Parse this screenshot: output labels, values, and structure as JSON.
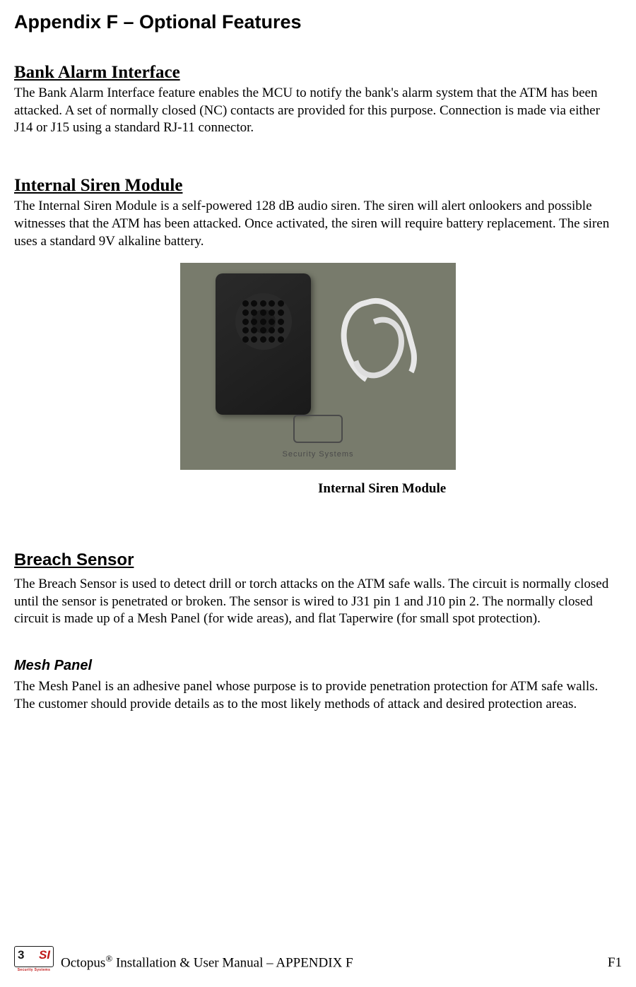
{
  "page": {
    "title": "Appendix F – Optional Features"
  },
  "sections": {
    "bank_alarm": {
      "heading": "Bank Alarm Interface",
      "body": "The Bank Alarm Interface feature enables the MCU to notify the bank's alarm system that the ATM has been attacked. A set of normally closed (NC) contacts are provided for this purpose. Connection is made via either J14 or J15 using a standard RJ-11 connector."
    },
    "siren": {
      "heading": "Internal Siren Module",
      "body": "The Internal Siren Module is a self-powered 128 dB audio siren. The siren will alert onlookers and possible witnesses that the ATM has been attacked. Once activated, the siren will require battery replacement. The siren uses a standard 9V alkaline battery.",
      "figure_caption": "Internal Siren Module",
      "figure_brand": "Security Systems"
    },
    "breach": {
      "heading": "Breach Sensor",
      "body": "The Breach Sensor is used to detect drill or torch attacks on the ATM safe walls. The circuit is normally closed until the sensor is penetrated or broken. The sensor is wired to J31 pin 1 and J10 pin 2. The normally closed circuit is made up of a Mesh Panel (for wide areas), and flat Taperwire (for small spot protection)."
    },
    "mesh": {
      "heading": "Mesh Panel",
      "body": "The Mesh Panel is an adhesive panel whose purpose is to provide penetration protection for ATM safe walls. The customer should provide details as to the most likely methods of attack and desired protection areas."
    }
  },
  "footer": {
    "logo_num": "3",
    "logo_s": "SI",
    "logo_tagline": "Security Systems",
    "text_prefix": "Octopus",
    "reg": "®",
    "text_suffix": " Installation & User Manual – APPENDIX F",
    "page_number": "F1"
  },
  "colors": {
    "text": "#000000",
    "background": "#ffffff",
    "logo_red": "#c01818",
    "figure_bg": "#787b6c"
  }
}
